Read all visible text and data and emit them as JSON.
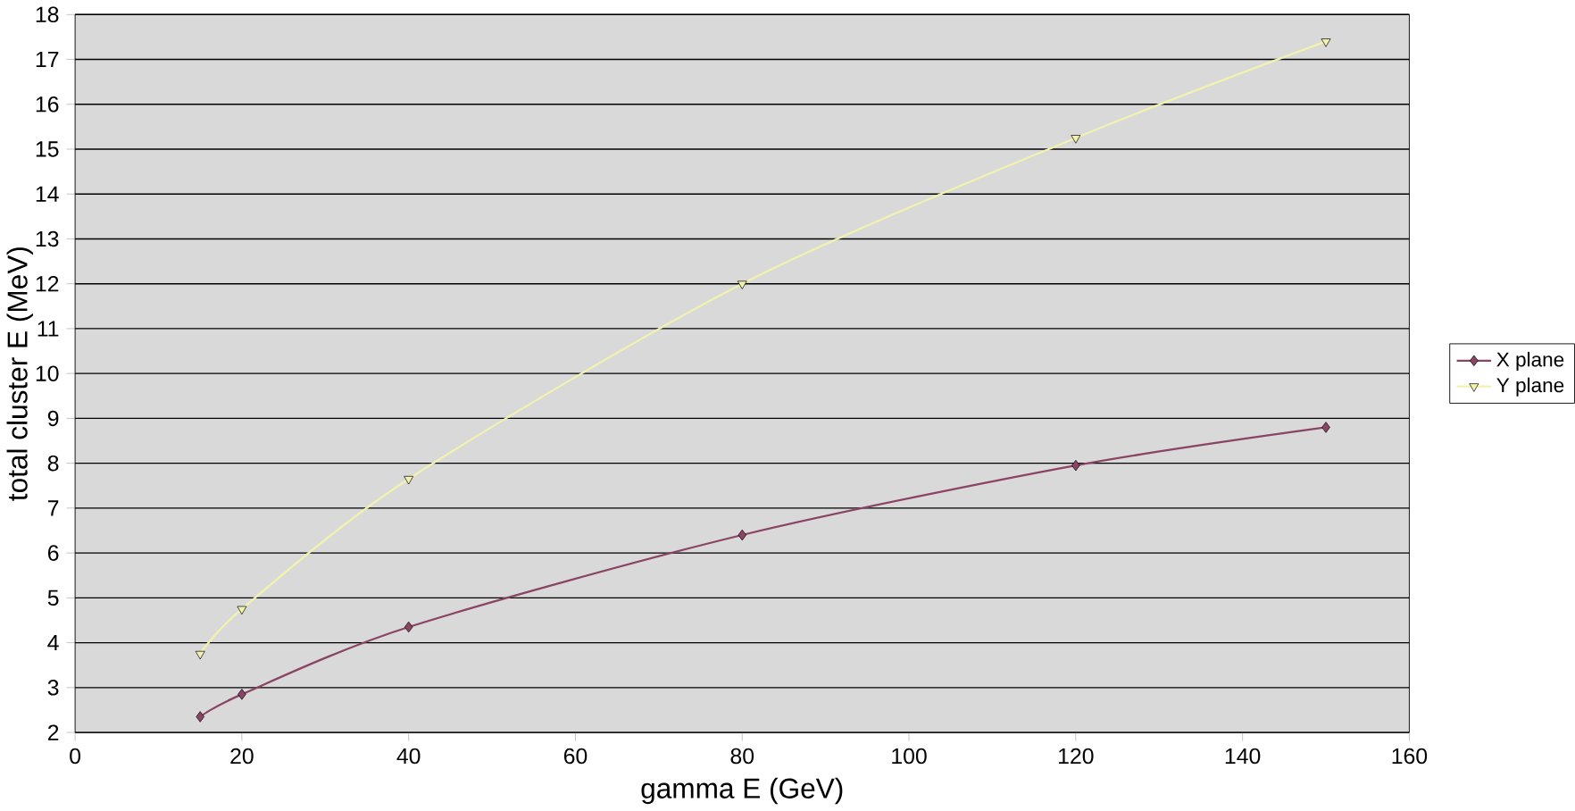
{
  "chart_data": {
    "type": "line",
    "xlabel": "gamma E (GeV)",
    "ylabel": "total cluster E (MeV)",
    "x": [
      15,
      20,
      40,
      80,
      120,
      150
    ],
    "series": [
      {
        "name": "X plane",
        "color": "#8a4464",
        "marker": "diamond",
        "values": [
          2.35,
          2.85,
          4.35,
          6.4,
          7.95,
          8.8
        ]
      },
      {
        "name": "Y plane",
        "color": "#f2f2b0",
        "marker": "triangle down",
        "values": [
          3.75,
          4.75,
          7.65,
          12.0,
          15.25,
          17.4
        ]
      }
    ],
    "xlim": [
      0,
      160
    ],
    "xticks": [
      0,
      20,
      40,
      60,
      80,
      100,
      120,
      140,
      160
    ],
    "ylim": [
      2,
      18
    ],
    "yticks": [
      2,
      3,
      4,
      5,
      6,
      7,
      8,
      9,
      10,
      11,
      12,
      13,
      14,
      15,
      16,
      17,
      18
    ],
    "grid": "y",
    "legend": "right"
  }
}
